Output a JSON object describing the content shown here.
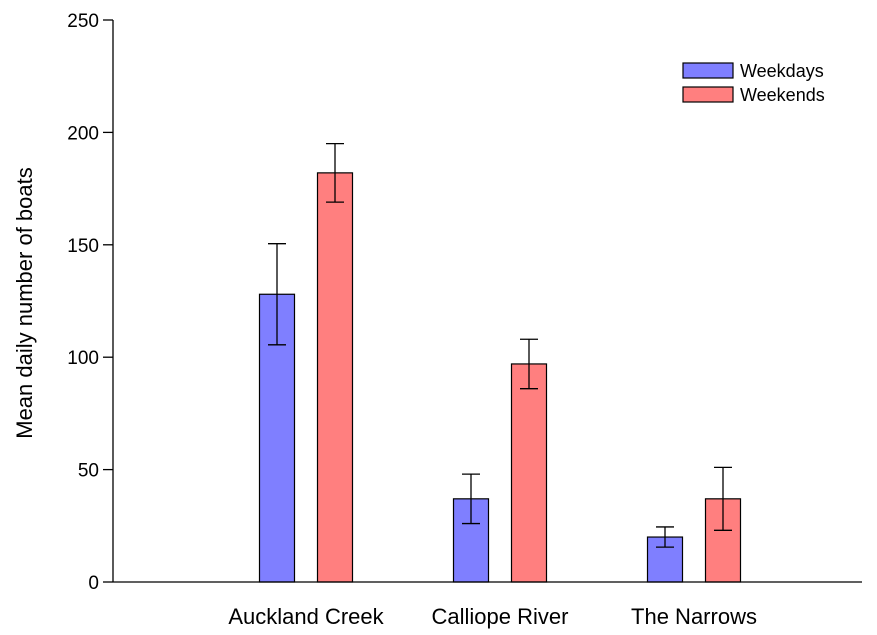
{
  "chart_data": {
    "type": "bar",
    "title": "",
    "xlabel": "",
    "ylabel": "Mean daily number of boats",
    "ylim": [
      0,
      250
    ],
    "yticks": [
      0,
      50,
      100,
      150,
      200,
      250
    ],
    "grid": false,
    "legend_position": "top-right",
    "categories": [
      "Auckland Creek",
      "Calliope River",
      "The Narrows"
    ],
    "series": [
      {
        "name": "Weekdays",
        "color": "#7f7fff",
        "values": [
          128,
          37,
          20
        ],
        "error": [
          22.5,
          11,
          4.5
        ]
      },
      {
        "name": "Weekends",
        "color": "#ff7f7f",
        "values": [
          182,
          97,
          37
        ],
        "error": [
          13,
          11,
          14
        ]
      }
    ]
  }
}
